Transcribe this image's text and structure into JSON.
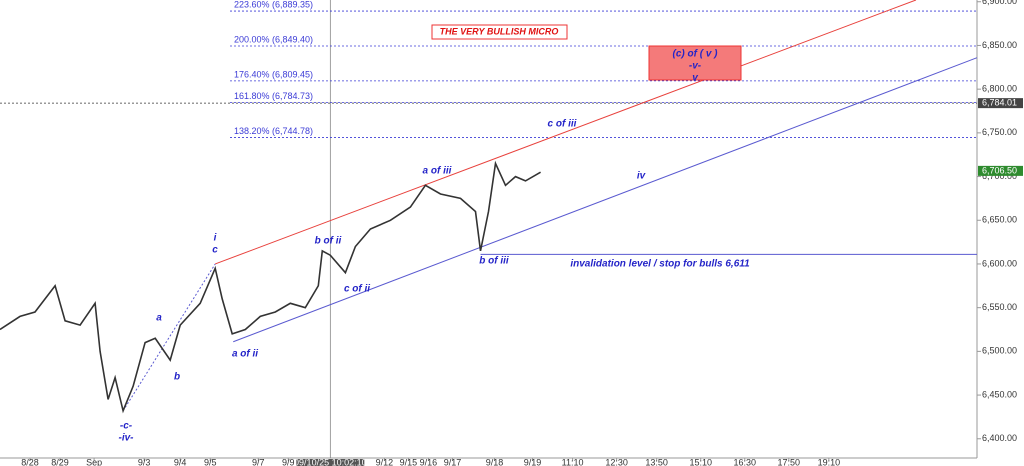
{
  "chart_data": {
    "type": "line",
    "title": "THE VERY BULLISH MICRO",
    "x": [
      0,
      5,
      8.75,
      13.75,
      16.25,
      20,
      23.75,
      25,
      27,
      28.75,
      30.75,
      33.25,
      36.25,
      38.75,
      42.5,
      45,
      50,
      53.75,
      55.5,
      58,
      61.25,
      65,
      68.75,
      72.5,
      76.25,
      79.5,
      80.5,
      82.5,
      86.25,
      88.75,
      92.5,
      97.5,
      102.5,
      106.25,
      110,
      115,
      118.75,
      120,
      122,
      123.75,
      126.25,
      128.75,
      131.25,
      135
    ],
    "values": [
      6525,
      6540,
      6545,
      6575,
      6535,
      6530,
      6555,
      6500,
      6445,
      6470,
      6432,
      6460,
      6510,
      6515,
      6490,
      6530,
      6555,
      6595,
      6560,
      6520,
      6525,
      6540,
      6545,
      6555,
      6550,
      6575,
      6615,
      6610,
      6590,
      6620,
      6640,
      6650,
      6665,
      6690,
      6680,
      6675,
      6660,
      6615,
      6660,
      6715,
      6690,
      6700,
      6695,
      6705
    ],
    "color": "#333333",
    "xlim": [
      0,
      244
    ],
    "ylim": [
      6378,
      6902
    ],
    "yticks": [
      {
        "value": 6400,
        "label": "6,400.00"
      },
      {
        "value": 6450,
        "label": "6,450.00"
      },
      {
        "value": 6500,
        "label": "6,500.00"
      },
      {
        "value": 6550,
        "label": "6,550.00"
      },
      {
        "value": 6600,
        "label": "6,600.00"
      },
      {
        "value": 6650,
        "label": "6,650.00"
      },
      {
        "value": 6700,
        "label": "6,700.00"
      },
      {
        "value": 6750,
        "label": "6,750.00"
      },
      {
        "value": 6800,
        "label": "6,800.00"
      },
      {
        "value": 6850,
        "label": "6,850.00"
      },
      {
        "value": 6900,
        "label": "6,900.00"
      }
    ],
    "xticks": [
      {
        "value": 7.5,
        "label": "8/28"
      },
      {
        "value": 15,
        "label": "8/29"
      },
      {
        "value": 23.5,
        "label": "Sep"
      },
      {
        "value": 36,
        "label": "9/3"
      },
      {
        "value": 45,
        "label": "9/4"
      },
      {
        "value": 52.5,
        "label": "9/5"
      },
      {
        "value": 64.5,
        "label": "9/7"
      },
      {
        "value": 72,
        "label": "9/9"
      },
      {
        "value": 96,
        "label": "9/12"
      },
      {
        "value": 102,
        "label": "9/15"
      },
      {
        "value": 107,
        "label": "9/16"
      },
      {
        "value": 113,
        "label": "9/17"
      },
      {
        "value": 123.5,
        "label": "9/18"
      },
      {
        "value": 133,
        "label": "9/19"
      },
      {
        "value": 143,
        "label": "11:10"
      },
      {
        "value": 154,
        "label": "12:30"
      },
      {
        "value": 164,
        "label": "13:50"
      },
      {
        "value": 175,
        "label": "15:10"
      },
      {
        "value": 186,
        "label": "16:30"
      },
      {
        "value": 197,
        "label": "17:50"
      },
      {
        "value": 207,
        "label": "19:10"
      }
    ],
    "crosshair": {
      "value": 82.5,
      "label": "09/10/25 10:02:10"
    },
    "fib_levels": [
      {
        "value": 6889.35,
        "label": "223.60% (6,889.35)"
      },
      {
        "value": 6849.4,
        "label": "200.00% (6,849.40)"
      },
      {
        "value": 6809.45,
        "label": "176.40% (6,809.45)"
      },
      {
        "value": 6784.73,
        "label": "161.80% (6,784.73)"
      },
      {
        "value": 6744.78,
        "label": "138.20% (6,744.78)"
      }
    ],
    "fib_color": "#3b3bd6",
    "marker_price": {
      "value": 6784.01,
      "label": "6,784.01"
    },
    "last_price": {
      "value": 6706.5,
      "label": "6,706.50"
    },
    "channels": [
      {
        "color": "#e8413c",
        "x": [
          53.75,
          228.75
        ],
        "y": [
          6600,
          6902
        ]
      },
      {
        "color": "#5a5ad0",
        "x": [
          58.25,
          244
        ],
        "y": [
          6511,
          6836
        ]
      }
    ],
    "guide": {
      "x": [
        30.75,
        53.75
      ],
      "y": [
        6432,
        6600
      ]
    },
    "invalidation": {
      "x": [
        120,
        244
      ],
      "value": 6611
    },
    "annotations": [
      "i",
      "c",
      "a",
      "b",
      "a of ii",
      "b of ii",
      "c of ii",
      "a of iii",
      "b of iii",
      "c of iii",
      "iv",
      "-c-",
      "-iv-",
      "invalidation level / stop for bulls 6,611"
    ],
    "target_box": [
      "(c) of ( v )",
      "-v-",
      "v"
    ]
  }
}
